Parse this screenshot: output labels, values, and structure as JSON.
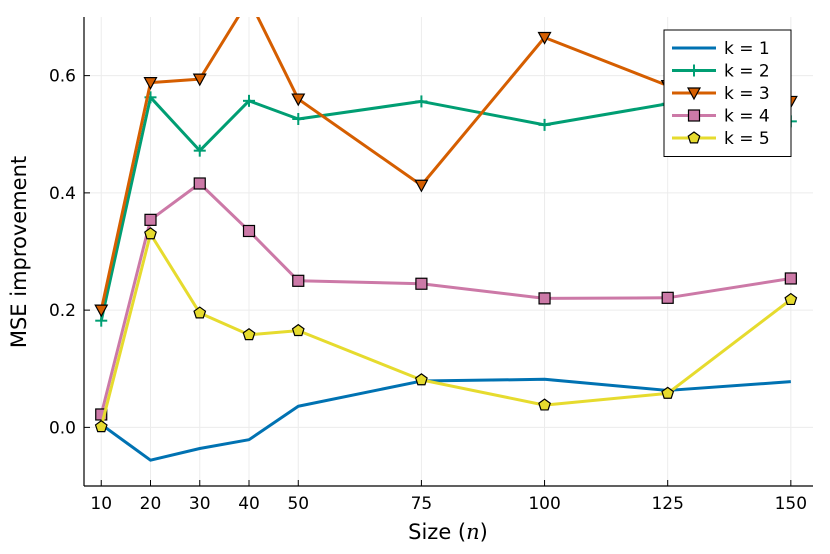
{
  "chart_data": {
    "type": "line",
    "title": "",
    "xlabel": "Size (",
    "xlabel_var": "n",
    "xlabel_close": ")",
    "ylabel": "MSE improvement",
    "x": [
      10,
      20,
      30,
      40,
      50,
      75,
      100,
      125,
      150
    ],
    "xticks": [
      "10",
      "20",
      "30",
      "40",
      "50",
      "75",
      "100",
      "125",
      "150"
    ],
    "xlim": [
      6.5,
      154.5
    ],
    "yticks": [
      "0.0",
      "0.2",
      "0.4",
      "0.6"
    ],
    "ylim": [
      -0.1,
      0.7
    ],
    "grid": true,
    "legend_position": "top-right",
    "series": [
      {
        "name": "k = 1",
        "color": "#0072b2",
        "marker": "none",
        "values": [
          0.005,
          -0.056,
          -0.036,
          -0.021,
          0.036,
          0.079,
          0.082,
          0.063,
          0.078
        ]
      },
      {
        "name": "k = 2",
        "color": "#009e73",
        "marker": "cross",
        "values": [
          0.182,
          0.563,
          0.472,
          0.557,
          0.526,
          0.556,
          0.516,
          0.552,
          0.522
        ]
      },
      {
        "name": "k = 3",
        "color": "#d55e00",
        "marker": "triangle-down",
        "values": [
          0.2,
          0.588,
          0.594,
          0.73,
          0.56,
          0.413,
          0.665,
          0.583,
          0.556
        ]
      },
      {
        "name": "k = 4",
        "color": "#cc79a7",
        "marker": "square",
        "values": [
          0.022,
          0.354,
          0.416,
          0.335,
          0.25,
          0.245,
          0.22,
          0.221,
          0.254
        ]
      },
      {
        "name": "k = 5",
        "color": "#e6db2e",
        "marker": "pentagon",
        "values": [
          0.001,
          0.33,
          0.195,
          0.158,
          0.165,
          0.081,
          0.038,
          0.058,
          0.218
        ]
      }
    ]
  }
}
